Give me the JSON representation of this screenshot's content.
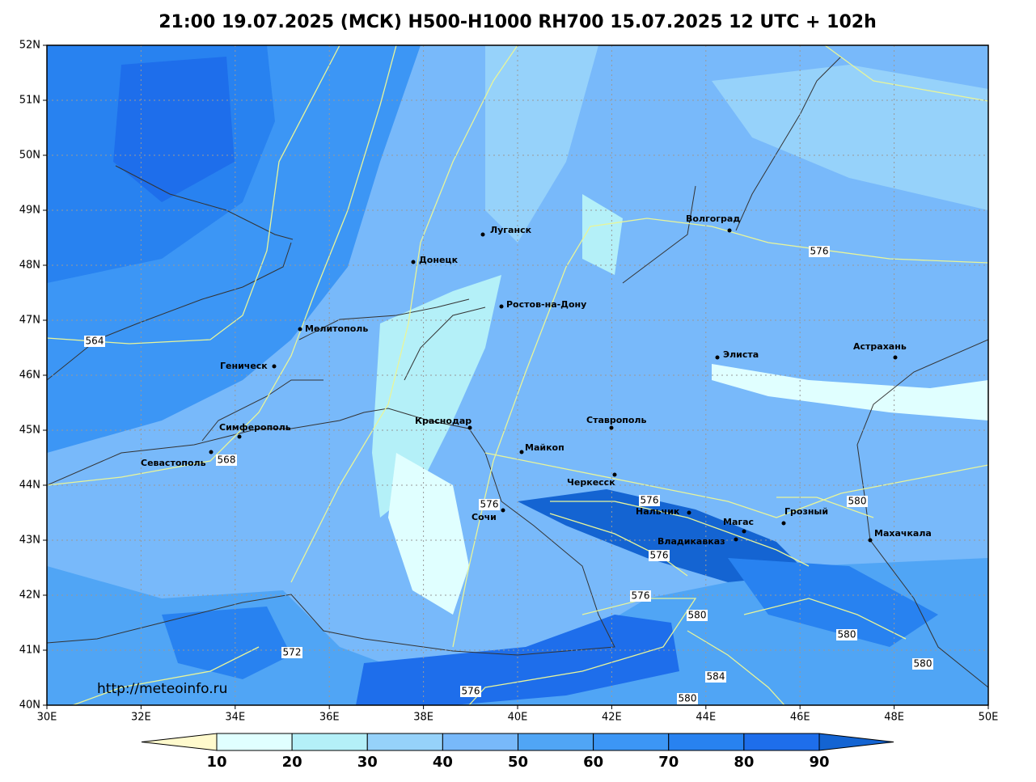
{
  "title": "21:00 19.07.2025 (МСК) H500-H1000 RH700 15.07.2025 12 UTC + 102h",
  "lon_ticks": [
    "30E",
    "32E",
    "34E",
    "36E",
    "38E",
    "40E",
    "42E",
    "44E",
    "46E",
    "48E",
    "50E"
  ],
  "lat_ticks": [
    "40N",
    "41N",
    "42N",
    "43N",
    "44N",
    "45N",
    "46N",
    "47N",
    "48N",
    "49N",
    "50N",
    "51N",
    "52N"
  ],
  "cities": [
    "Луганск",
    "Донецк",
    "Ростов-на-Дону",
    "Мелитополь",
    "Геническ",
    "Симферополь",
    "Севастополь",
    "Краснодар",
    "Майкоп",
    "Ставрополь",
    "Черкесск",
    "Сочи",
    "Нальчик",
    "Магас",
    "Грозный",
    "Владикавказ",
    "Махачкала",
    "Элиста",
    "Астрахань",
    "Волгоград"
  ],
  "contour_labels": [
    564,
    568,
    572,
    576,
    576,
    576,
    576,
    576,
    576,
    580,
    580,
    580,
    580,
    580,
    584
  ],
  "url": "http://meteoinfo.ru",
  "colorbar": {
    "labels": [
      10,
      20,
      30,
      40,
      50,
      60,
      70,
      80,
      90
    ],
    "colors": [
      "#fffacd",
      "#e0ffff",
      "#b4f0f8",
      "#96d2fa",
      "#78b9fa",
      "#50a5f5",
      "#3c96f5",
      "#2882f0",
      "#1e6eeb",
      "#1464d2"
    ]
  }
}
